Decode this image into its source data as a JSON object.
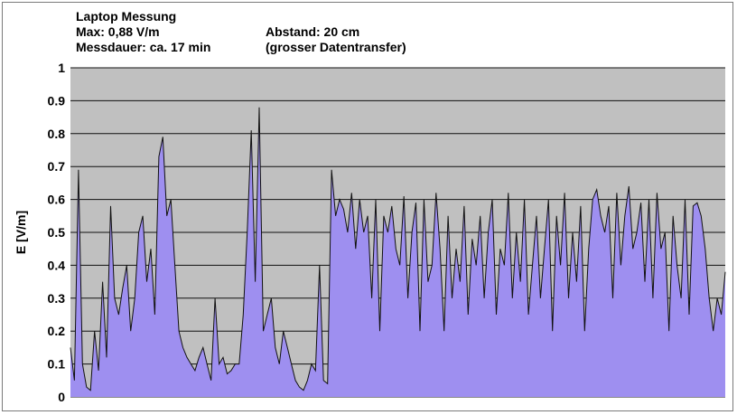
{
  "header": {
    "line1": "Laptop Messung",
    "line2_left": "Max: 0,88 V/m",
    "line2_right": "Abstand: 20 cm",
    "line3_left": "Messdauer: ca. 17 min",
    "line3_right": "(grosser Datentransfer)"
  },
  "colors": {
    "plot_background": "#c0c0c0",
    "fill": "#9e8ff0",
    "line": "#111111",
    "grid": "#111111"
  },
  "chart_data": {
    "type": "area",
    "title": "Laptop Messung",
    "xlabel": "",
    "ylabel": "E [V/m]",
    "ylim": [
      0,
      1
    ],
    "yticks": [
      "0",
      "0.1",
      "0.2",
      "0.3",
      "0.4",
      "0.5",
      "0.6",
      "0.7",
      "0.8",
      "0.9",
      "1"
    ],
    "grid": true,
    "legend": "none",
    "max_value": 0.88,
    "series": [
      {
        "values": [
          0.15,
          0.05,
          0.69,
          0.1,
          0.03,
          0.02,
          0.2,
          0.08,
          0.35,
          0.12,
          0.58,
          0.3,
          0.25,
          0.33,
          0.4,
          0.2,
          0.3,
          0.5,
          0.55,
          0.35,
          0.45,
          0.25,
          0.73,
          0.79,
          0.55,
          0.6,
          0.4,
          0.2,
          0.15,
          0.12,
          0.1,
          0.08,
          0.12,
          0.15,
          0.1,
          0.05,
          0.3,
          0.1,
          0.12,
          0.07,
          0.08,
          0.1,
          0.1,
          0.25,
          0.5,
          0.81,
          0.35,
          0.88,
          0.2,
          0.25,
          0.3,
          0.15,
          0.1,
          0.2,
          0.15,
          0.1,
          0.05,
          0.03,
          0.02,
          0.05,
          0.1,
          0.08,
          0.4,
          0.05,
          0.04,
          0.69,
          0.55,
          0.6,
          0.57,
          0.5,
          0.62,
          0.45,
          0.6,
          0.5,
          0.55,
          0.3,
          0.6,
          0.2,
          0.55,
          0.5,
          0.58,
          0.45,
          0.4,
          0.61,
          0.3,
          0.5,
          0.59,
          0.2,
          0.6,
          0.35,
          0.4,
          0.62,
          0.45,
          0.2,
          0.55,
          0.3,
          0.45,
          0.35,
          0.58,
          0.25,
          0.48,
          0.4,
          0.55,
          0.3,
          0.5,
          0.6,
          0.25,
          0.45,
          0.4,
          0.62,
          0.3,
          0.5,
          0.35,
          0.6,
          0.25,
          0.4,
          0.55,
          0.3,
          0.45,
          0.6,
          0.2,
          0.55,
          0.4,
          0.62,
          0.3,
          0.5,
          0.35,
          0.58,
          0.2,
          0.45,
          0.6,
          0.63,
          0.55,
          0.5,
          0.58,
          0.3,
          0.62,
          0.4,
          0.55,
          0.64,
          0.45,
          0.5,
          0.59,
          0.35,
          0.6,
          0.3,
          0.62,
          0.45,
          0.5,
          0.2,
          0.55,
          0.4,
          0.3,
          0.6,
          0.25,
          0.58,
          0.59,
          0.55,
          0.45,
          0.3,
          0.2,
          0.3,
          0.25,
          0.38
        ]
      }
    ]
  }
}
